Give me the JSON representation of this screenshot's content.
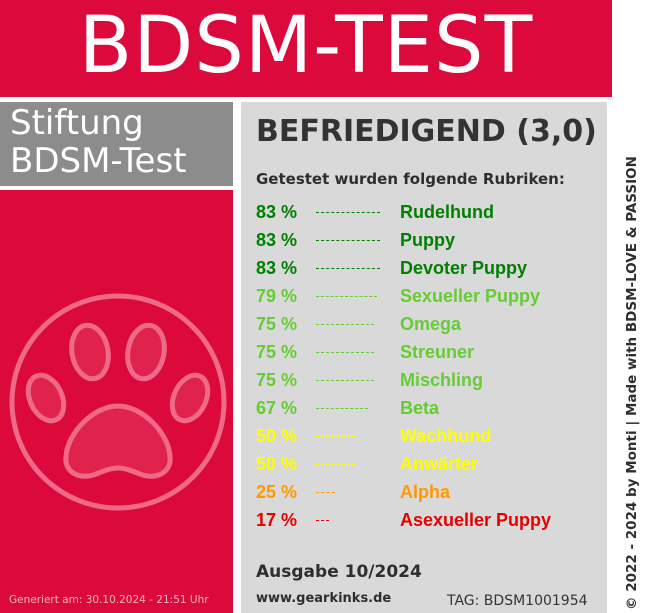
{
  "banner": {
    "title": "BDSM-TEST"
  },
  "brand": {
    "line1": "Stiftung",
    "line2": "BDSM-Test"
  },
  "result": {
    "verdict": "BEFRIEDIGEND (3,0)",
    "subheading": "Getestet wurden folgende Rubriken:",
    "rows": [
      {
        "percent": "83 %",
        "label": "Rudelhund",
        "value": 83,
        "color": "#008000"
      },
      {
        "percent": "83 %",
        "label": "Puppy",
        "value": 83,
        "color": "#008000"
      },
      {
        "percent": "83 %",
        "label": "Devoter Puppy",
        "value": 83,
        "color": "#008000"
      },
      {
        "percent": "79 %",
        "label": "Sexueller Puppy",
        "value": 79,
        "color": "#66cc33"
      },
      {
        "percent": "75 %",
        "label": "Omega",
        "value": 75,
        "color": "#66cc33"
      },
      {
        "percent": "75 %",
        "label": "Streuner",
        "value": 75,
        "color": "#66cc33"
      },
      {
        "percent": "75 %",
        "label": "Mischling",
        "value": 75,
        "color": "#66cc33"
      },
      {
        "percent": "67 %",
        "label": "Beta",
        "value": 67,
        "color": "#66cc33"
      },
      {
        "percent": "50 %",
        "label": "Wachhund",
        "value": 50,
        "color": "#ffff00"
      },
      {
        "percent": "50 %",
        "label": "Anwärter",
        "value": 50,
        "color": "#ffff00"
      },
      {
        "percent": "25 %",
        "label": "Alpha",
        "value": 25,
        "color": "#ff9900"
      },
      {
        "percent": "17 %",
        "label": "Asexueller Puppy",
        "value": 17,
        "color": "#e60000"
      }
    ]
  },
  "footer": {
    "edition": "Ausgabe 10/2024",
    "url": "www.gearkinks.de",
    "tag": "TAG: BDSM1001954",
    "generated": "Generiert am: 30.10.2024 - 21:51 Uhr"
  },
  "side_text": "© 2022 - 2024 by Monti | Made with BDSM-LOVE & PASSION",
  "colors": {
    "brand_red": "#dc0a3c",
    "panel_gray": "#d9d9d9",
    "brand_gray": "#8c8c8c"
  },
  "icons": {
    "logo": "paw-print-icon"
  }
}
